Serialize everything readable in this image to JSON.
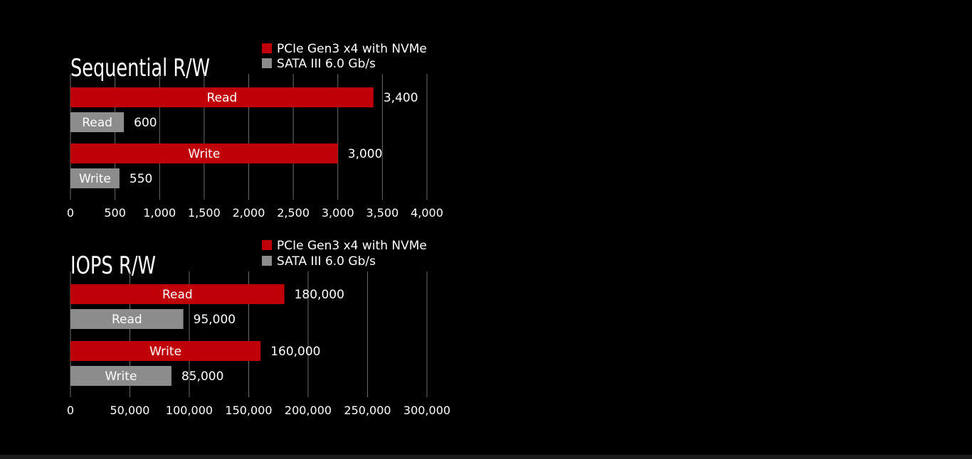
{
  "colors": {
    "background": "#000000",
    "nvme": "#c00008",
    "sata": "#8c8c8c",
    "grid": "#6a6a6a",
    "text": "#ffffff"
  },
  "chart_data": [
    {
      "type": "bar",
      "orientation": "horizontal",
      "title": "Sequential R/W",
      "legend_position": "top-right",
      "legend": [
        "PCIe Gen3 x4 with NVMe",
        "SATA III 6.0 Gb/s"
      ],
      "grid": true,
      "xlim": [
        0,
        4000
      ],
      "ticks": [
        0,
        500,
        1000,
        1500,
        2000,
        2500,
        3000,
        3500,
        4000
      ],
      "tick_labels": [
        "0",
        "500",
        "1,000",
        "1,500",
        "2,000",
        "2,500",
        "3,000",
        "3,500",
        "4,000"
      ],
      "bars": [
        {
          "label": "Read",
          "series": "nvme",
          "value": 3400,
          "value_label": "3,400"
        },
        {
          "label": "Read",
          "series": "sata",
          "value": 600,
          "value_label": "600"
        },
        {
          "label": "Write",
          "series": "nvme",
          "value": 3000,
          "value_label": "3,000"
        },
        {
          "label": "Write",
          "series": "sata",
          "value": 550,
          "value_label": "550"
        }
      ]
    },
    {
      "type": "bar",
      "orientation": "horizontal",
      "title": "IOPS R/W",
      "legend_position": "top-right",
      "legend": [
        "PCIe Gen3 x4 with NVMe",
        "SATA III 6.0 Gb/s"
      ],
      "grid": true,
      "xlim": [
        0,
        300000
      ],
      "ticks": [
        0,
        50000,
        100000,
        150000,
        200000,
        250000,
        300000
      ],
      "tick_labels": [
        "0",
        "50,000",
        "100,000",
        "150,000",
        "200,000",
        "250,000",
        "300,000"
      ],
      "bars": [
        {
          "label": "Read",
          "series": "nvme",
          "value": 180000,
          "value_label": "180,000"
        },
        {
          "label": "Read",
          "series": "sata",
          "value": 95000,
          "value_label": "95,000"
        },
        {
          "label": "Write",
          "series": "nvme",
          "value": 160000,
          "value_label": "160,000"
        },
        {
          "label": "Write",
          "series": "sata",
          "value": 85000,
          "value_label": "85,000"
        }
      ]
    }
  ]
}
